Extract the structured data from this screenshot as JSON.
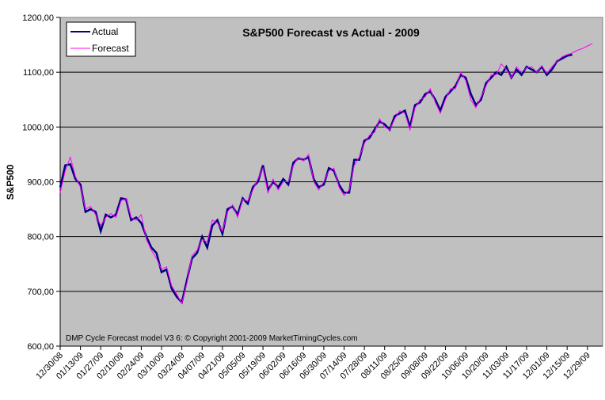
{
  "chart_data": {
    "type": "line",
    "title": "S&P500 Forecast vs Actual - 2009",
    "xlabel": "",
    "ylabel": "S&P500",
    "ylim": [
      600,
      1200
    ],
    "yticks": [
      600,
      700,
      800,
      900,
      1000,
      1100,
      1200
    ],
    "ytick_labels": [
      "600,00",
      "700,00",
      "800,00",
      "900,00",
      "1000,00",
      "1100,00",
      "1200,00"
    ],
    "grid": "horizontal",
    "background": "#c0c0c0",
    "xtick_labels": [
      "12/30/08",
      "01/13/09",
      "01/27/09",
      "02/10/09",
      "02/24/09",
      "03/10/09",
      "03/24/09",
      "04/07/09",
      "04/21/09",
      "05/05/09",
      "05/19/09",
      "06/02/09",
      "06/16/09",
      "06/30/09",
      "07/14/09",
      "07/28/09",
      "08/11/09",
      "08/25/09",
      "09/08/09",
      "09/22/09",
      "10/06/09",
      "10/20/09",
      "11/03/09",
      "11/17/09",
      "12/01/09",
      "12/15/09",
      "12/29/09"
    ],
    "legend": {
      "placement": "top-left",
      "entries": [
        "Actual",
        "Forecast"
      ]
    },
    "annotation": "DMP Cycle Forecast model V3  6: © Copyright 2001-2009 MarketTimingCycles.com",
    "x_units": "week index (0 = 12/30/08, 2 = 01/13/09, ... 52 = 12/29/09)",
    "series": [
      {
        "name": "Actual",
        "color": "#000080",
        "x": [
          0,
          0.5,
          1,
          1.5,
          2,
          2.5,
          3,
          3.5,
          4,
          4.5,
          5,
          5.5,
          6,
          6.5,
          7,
          7.5,
          8,
          8.5,
          9,
          9.5,
          10,
          10.5,
          11,
          11.5,
          12,
          12.5,
          13,
          13.5,
          14,
          14.5,
          15,
          15.5,
          16,
          16.5,
          17,
          17.5,
          18,
          18.5,
          19,
          19.5,
          20,
          20.5,
          21,
          21.5,
          22,
          22.5,
          23,
          23.5,
          24,
          24.5,
          25,
          25.5,
          26,
          26.5,
          27,
          27.5,
          28,
          28.5,
          29,
          29.5,
          30,
          30.5,
          31,
          31.5,
          32,
          32.5,
          33,
          33.5,
          34,
          34.5,
          35,
          35.5,
          36,
          36.5,
          37,
          37.5,
          38,
          38.5,
          39,
          39.5,
          40,
          40.5,
          41,
          41.5,
          42,
          42.5,
          43,
          43.5,
          44,
          44.5,
          45,
          45.5,
          46,
          46.5,
          47,
          47.5,
          48,
          48.5,
          49,
          49.5,
          50,
          50.5
        ],
        "values": [
          890,
          930,
          932,
          905,
          895,
          845,
          850,
          845,
          810,
          840,
          835,
          840,
          870,
          868,
          830,
          835,
          825,
          800,
          780,
          770,
          735,
          740,
          705,
          690,
          680,
          720,
          760,
          770,
          800,
          780,
          820,
          830,
          805,
          850,
          855,
          840,
          870,
          860,
          890,
          900,
          930,
          885,
          900,
          890,
          905,
          895,
          935,
          943,
          940,
          945,
          905,
          890,
          895,
          925,
          920,
          895,
          880,
          880,
          940,
          940,
          975,
          980,
          995,
          1010,
          1005,
          995,
          1020,
          1025,
          1030,
          1000,
          1040,
          1045,
          1060,
          1065,
          1050,
          1030,
          1055,
          1065,
          1075,
          1095,
          1090,
          1060,
          1040,
          1050,
          1080,
          1090,
          1100,
          1095,
          1110,
          1090,
          1105,
          1095,
          1110,
          1105,
          1100,
          1110,
          1095,
          1105,
          1120,
          1125,
          1130,
          1132
        ]
      },
      {
        "name": "Forecast",
        "color": "#ff00ff",
        "x": [
          0,
          0.5,
          1,
          1.5,
          2,
          2.5,
          3,
          3.5,
          4,
          4.5,
          5,
          5.5,
          6,
          6.5,
          7,
          7.5,
          8,
          8.5,
          9,
          9.5,
          10,
          10.5,
          11,
          11.5,
          12,
          12.5,
          13,
          13.5,
          14,
          14.5,
          15,
          15.5,
          16,
          16.5,
          17,
          17.5,
          18,
          18.5,
          19,
          19.5,
          20,
          20.5,
          21,
          21.5,
          22,
          22.5,
          23,
          23.5,
          24,
          24.5,
          25,
          25.5,
          26,
          26.5,
          27,
          27.5,
          28,
          28.5,
          29,
          29.5,
          30,
          30.5,
          31,
          31.5,
          32,
          32.5,
          33,
          33.5,
          34,
          34.5,
          35,
          35.5,
          36,
          36.5,
          37,
          37.5,
          38,
          38.5,
          39,
          39.5,
          40,
          40.5,
          41,
          41.5,
          42,
          42.5,
          43,
          43.5,
          44,
          44.5,
          45,
          45.5,
          46,
          46.5,
          47,
          47.5,
          48,
          48.5,
          49,
          49.5,
          50,
          50.5,
          51,
          51.5,
          52,
          52.5
        ],
        "values": [
          880,
          920,
          945,
          910,
          890,
          850,
          855,
          840,
          820,
          835,
          842,
          835,
          865,
          870,
          835,
          830,
          840,
          795,
          775,
          760,
          740,
          745,
          710,
          695,
          678,
          715,
          765,
          775,
          795,
          790,
          830,
          825,
          810,
          845,
          858,
          835,
          868,
          865,
          885,
          905,
          925,
          880,
          905,
          885,
          900,
          900,
          930,
          945,
          938,
          950,
          900,
          885,
          900,
          920,
          925,
          890,
          875,
          885,
          930,
          945,
          970,
          985,
          990,
          1015,
          1000,
          995,
          1015,
          1030,
          1025,
          995,
          1035,
          1050,
          1055,
          1070,
          1045,
          1025,
          1050,
          1070,
          1070,
          1100,
          1085,
          1050,
          1035,
          1055,
          1075,
          1095,
          1095,
          1115,
          1105,
          1090,
          1110,
          1100,
          1108,
          1110,
          1100,
          1112,
          1098,
          1110,
          1120,
          1128,
          1132,
          1135,
          1140,
          1143,
          1148,
          1152
        ]
      }
    ]
  }
}
